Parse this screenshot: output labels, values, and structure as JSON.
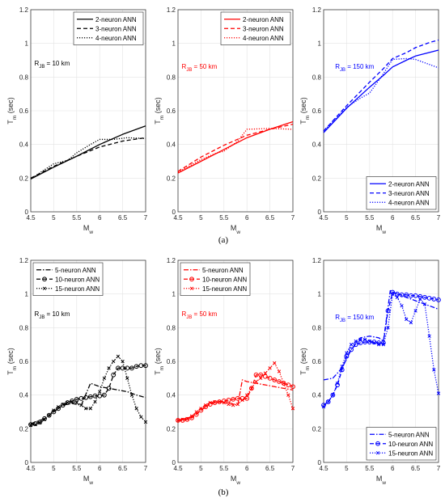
{
  "chart_data": [
    {
      "id": "a1",
      "type": "line",
      "group": "a",
      "color": "#000000",
      "xlabel": "M",
      "xlabel_sub": "w",
      "ylabel": "T",
      "ylabel_sub": "m",
      "ylabel_unit": " (sec)",
      "xlim": [
        4.5,
        7
      ],
      "ylim": [
        0,
        1.2
      ],
      "xticks": [
        "4.5",
        "5",
        "5.5",
        "6",
        "6.5",
        "7"
      ],
      "yticks": [
        "0",
        "0.2",
        "0.4",
        "0.6",
        "0.8",
        "1",
        "1.2"
      ],
      "annotation": {
        "main": "R",
        "sub": "JB",
        "rest": " = 10 km",
        "x": 4.58,
        "y": 0.87
      },
      "legend": "top-right",
      "series": [
        {
          "name": "2-neuron ANN",
          "dash": "solid",
          "x": [
            4.5,
            5,
            5.5,
            6,
            6.5,
            7
          ],
          "y": [
            0.195,
            0.265,
            0.33,
            0.4,
            0.46,
            0.51
          ]
        },
        {
          "name": "3-neuron ANN",
          "dash": "dashed",
          "x": [
            4.5,
            5,
            5.5,
            6,
            6.5,
            7
          ],
          "y": [
            0.2,
            0.27,
            0.33,
            0.385,
            0.42,
            0.44
          ]
        },
        {
          "name": "4-neuron ANN",
          "dash": "dotted",
          "x": [
            4.5,
            4.8,
            5,
            5.3,
            5.5,
            5.8,
            6,
            6.3,
            6.6,
            7
          ],
          "y": [
            0.195,
            0.25,
            0.285,
            0.305,
            0.35,
            0.4,
            0.43,
            0.43,
            0.44,
            0.435
          ]
        }
      ]
    },
    {
      "id": "a2",
      "type": "line",
      "group": "a",
      "color": "#ff0000",
      "xlabel": "M",
      "xlabel_sub": "w",
      "ylabel": "T",
      "ylabel_sub": "m",
      "ylabel_unit": " (sec)",
      "xlim": [
        4.5,
        7
      ],
      "ylim": [
        0,
        1.2
      ],
      "xticks": [
        "4.5",
        "5",
        "5.5",
        "6",
        "6.5",
        "7"
      ],
      "yticks": [
        "0",
        "0.2",
        "0.4",
        "0.6",
        "0.8",
        "1",
        "1.2"
      ],
      "annotation": {
        "main": "R",
        "sub": "JB",
        "rest": " = 50 km",
        "x": 4.58,
        "y": 0.85
      },
      "legend": "top-right",
      "series": [
        {
          "name": "2-neuron ANN",
          "dash": "solid",
          "x": [
            4.5,
            5,
            5.5,
            6,
            6.5,
            7
          ],
          "y": [
            0.23,
            0.3,
            0.37,
            0.44,
            0.49,
            0.535
          ]
        },
        {
          "name": "3-neuron ANN",
          "dash": "dashed",
          "x": [
            4.5,
            5,
            5.5,
            6,
            6.5,
            7
          ],
          "y": [
            0.24,
            0.325,
            0.395,
            0.455,
            0.49,
            0.52
          ]
        },
        {
          "name": "4-neuron ANN",
          "dash": "dotted",
          "x": [
            4.5,
            4.8,
            5,
            5.3,
            5.5,
            5.8,
            6,
            6.5,
            7
          ],
          "y": [
            0.235,
            0.28,
            0.31,
            0.345,
            0.36,
            0.42,
            0.49,
            0.495,
            0.49
          ]
        }
      ]
    },
    {
      "id": "a3",
      "type": "line",
      "group": "a",
      "color": "#0000ff",
      "xlabel": "M",
      "xlabel_sub": "w",
      "ylabel": "T",
      "ylabel_sub": "m",
      "ylabel_unit": " (sec)",
      "xlim": [
        4.5,
        7
      ],
      "ylim": [
        0,
        1.2
      ],
      "xticks": [
        "4.5",
        "5",
        "5.5",
        "6",
        "6.5",
        "7"
      ],
      "yticks": [
        "0",
        "0.2",
        "0.4",
        "0.6",
        "0.8",
        "1",
        "1.2"
      ],
      "annotation": {
        "main": "R",
        "sub": "JB",
        "rest": " = 150 km",
        "x": 4.75,
        "y": 0.85
      },
      "legend": "bottom-right",
      "series": [
        {
          "name": "2-neuron ANN",
          "dash": "solid",
          "x": [
            4.5,
            5,
            5.5,
            5.8,
            6,
            6.3,
            6.5,
            7
          ],
          "y": [
            0.47,
            0.615,
            0.74,
            0.81,
            0.86,
            0.9,
            0.925,
            0.96
          ]
        },
        {
          "name": "3-neuron ANN",
          "dash": "dashed",
          "x": [
            4.5,
            5,
            5.5,
            5.8,
            6,
            6.3,
            6.5,
            6.8,
            7
          ],
          "y": [
            0.48,
            0.63,
            0.77,
            0.85,
            0.91,
            0.945,
            0.975,
            1.005,
            1.02
          ]
        },
        {
          "name": "4-neuron ANN",
          "dash": "dotted",
          "x": [
            4.5,
            5,
            5.3,
            5.5,
            5.8,
            6,
            6.3,
            6.5,
            6.8,
            7
          ],
          "y": [
            0.48,
            0.62,
            0.675,
            0.705,
            0.82,
            0.905,
            0.91,
            0.905,
            0.875,
            0.855
          ]
        }
      ]
    },
    {
      "id": "b1",
      "type": "line",
      "group": "b",
      "color": "#000000",
      "xlabel": "M",
      "xlabel_sub": "w",
      "ylabel": "T",
      "ylabel_sub": "m",
      "ylabel_unit": " (sec)",
      "xlim": [
        4.5,
        7
      ],
      "ylim": [
        0,
        1.2
      ],
      "xticks": [
        "4.5",
        "5",
        "5.5",
        "6",
        "6.5",
        "7"
      ],
      "yticks": [
        "0",
        "0.2",
        "0.4",
        "0.6",
        "0.8",
        "1",
        "1.2"
      ],
      "annotation": {
        "main": "R",
        "sub": "JB",
        "rest": " = 10 km",
        "x": 4.58,
        "y": 0.87
      },
      "legend": "top-left",
      "series": [
        {
          "name": "5-neuron ANN",
          "dash": "dashdot",
          "marker": "none",
          "x": [
            4.5,
            4.8,
            5,
            5.2,
            5.4,
            5.6,
            5.8,
            6,
            6.2,
            6.4,
            6.6,
            6.8,
            7
          ],
          "y": [
            0.23,
            0.26,
            0.3,
            0.34,
            0.35,
            0.34,
            0.47,
            0.45,
            0.44,
            0.43,
            0.42,
            0.4,
            0.385
          ]
        },
        {
          "name": "10-neuron ANN",
          "dash": "dashed",
          "marker": "circle",
          "x": [
            4.5,
            4.6,
            4.7,
            4.8,
            4.9,
            5,
            5.1,
            5.2,
            5.3,
            5.4,
            5.5,
            5.6,
            5.7,
            5.8,
            5.9,
            6,
            6.1,
            6.2,
            6.3,
            6.4,
            6.5,
            6.6,
            6.7,
            6.8,
            6.9,
            7
          ],
          "y": [
            0.225,
            0.23,
            0.24,
            0.26,
            0.28,
            0.3,
            0.32,
            0.34,
            0.355,
            0.365,
            0.375,
            0.38,
            0.385,
            0.39,
            0.395,
            0.395,
            0.4,
            0.44,
            0.52,
            0.56,
            0.56,
            0.56,
            0.56,
            0.57,
            0.575,
            0.575
          ]
        },
        {
          "name": "15-neuron ANN",
          "dash": "dotted",
          "marker": "x",
          "x": [
            4.5,
            4.6,
            4.7,
            4.8,
            4.9,
            5,
            5.1,
            5.2,
            5.3,
            5.4,
            5.5,
            5.6,
            5.7,
            5.8,
            5.9,
            6,
            6.1,
            6.2,
            6.3,
            6.4,
            6.5,
            6.6,
            6.7,
            6.8,
            6.9,
            7
          ],
          "y": [
            0.22,
            0.225,
            0.235,
            0.255,
            0.28,
            0.31,
            0.33,
            0.345,
            0.355,
            0.36,
            0.355,
            0.34,
            0.32,
            0.32,
            0.36,
            0.42,
            0.5,
            0.56,
            0.6,
            0.63,
            0.6,
            0.5,
            0.4,
            0.32,
            0.27,
            0.24
          ]
        }
      ]
    },
    {
      "id": "b2",
      "type": "line",
      "group": "b",
      "color": "#ff0000",
      "xlabel": "M",
      "xlabel_sub": "w",
      "ylabel": "T",
      "ylabel_sub": "m",
      "ylabel_unit": " (sec)",
      "xlim": [
        4.5,
        7
      ],
      "ylim": [
        0,
        1.2
      ],
      "xticks": [
        "4.5",
        "5",
        "5.5",
        "6",
        "6.5",
        "7"
      ],
      "yticks": [
        "0",
        "0.2",
        "0.4",
        "0.6",
        "0.8",
        "1",
        "1.2"
      ],
      "annotation": {
        "main": "R",
        "sub": "JB",
        "rest": " = 50 km",
        "x": 4.58,
        "y": 0.87
      },
      "legend": "top-left",
      "series": [
        {
          "name": "5-neuron ANN",
          "dash": "dashdot",
          "marker": "none",
          "x": [
            4.5,
            4.8,
            5,
            5.2,
            5.4,
            5.6,
            5.8,
            5.9,
            6,
            6.2,
            6.4,
            6.6,
            6.8,
            7
          ],
          "y": [
            0.25,
            0.27,
            0.31,
            0.35,
            0.36,
            0.355,
            0.34,
            0.49,
            0.48,
            0.47,
            0.46,
            0.45,
            0.44,
            0.43
          ]
        },
        {
          "name": "10-neuron ANN",
          "dash": "dashed",
          "marker": "circle",
          "x": [
            4.5,
            4.6,
            4.7,
            4.8,
            4.9,
            5,
            5.1,
            5.2,
            5.3,
            5.4,
            5.5,
            5.6,
            5.7,
            5.8,
            5.9,
            6,
            6.1,
            6.2,
            6.3,
            6.4,
            6.5,
            6.6,
            6.7,
            6.8,
            6.9,
            7
          ],
          "y": [
            0.25,
            0.25,
            0.255,
            0.265,
            0.285,
            0.31,
            0.33,
            0.345,
            0.355,
            0.36,
            0.365,
            0.37,
            0.375,
            0.38,
            0.38,
            0.38,
            0.44,
            0.52,
            0.52,
            0.51,
            0.5,
            0.49,
            0.48,
            0.47,
            0.46,
            0.45
          ]
        },
        {
          "name": "15-neuron ANN",
          "dash": "dotted",
          "marker": "x",
          "x": [
            4.5,
            4.6,
            4.7,
            4.8,
            4.9,
            5,
            5.1,
            5.2,
            5.3,
            5.4,
            5.5,
            5.6,
            5.7,
            5.8,
            5.9,
            6,
            6.1,
            6.2,
            6.3,
            6.4,
            6.5,
            6.6,
            6.7,
            6.8,
            6.9,
            7
          ],
          "y": [
            0.25,
            0.255,
            0.26,
            0.275,
            0.3,
            0.32,
            0.34,
            0.355,
            0.36,
            0.36,
            0.355,
            0.345,
            0.34,
            0.345,
            0.37,
            0.4,
            0.44,
            0.48,
            0.5,
            0.53,
            0.56,
            0.59,
            0.54,
            0.47,
            0.4,
            0.32
          ]
        }
      ]
    },
    {
      "id": "b3",
      "type": "line",
      "group": "b",
      "color": "#0000ff",
      "xlabel": "M",
      "xlabel_sub": "w",
      "ylabel": "T",
      "ylabel_sub": "m",
      "ylabel_unit": " (sec)",
      "xlim": [
        4.5,
        7
      ],
      "ylim": [
        0,
        1.2
      ],
      "xticks": [
        "4.5",
        "5",
        "5.5",
        "6",
        "6.5",
        "7"
      ],
      "yticks": [
        "0",
        "0.2",
        "0.4",
        "0.6",
        "0.8",
        "1",
        "1.2"
      ],
      "annotation": {
        "main": "R",
        "sub": "JB",
        "rest": " = 150 km",
        "x": 4.75,
        "y": 0.85
      },
      "legend": "bottom-right",
      "series": [
        {
          "name": "5-neuron ANN",
          "dash": "dashdot",
          "marker": "none",
          "x": [
            4.5,
            4.7,
            4.9,
            5.1,
            5.3,
            5.5,
            5.7,
            5.8,
            5.95,
            6.1,
            6.3,
            6.5,
            6.7,
            7
          ],
          "y": [
            0.49,
            0.5,
            0.56,
            0.67,
            0.74,
            0.75,
            0.74,
            0.72,
            1.02,
            1.0,
            0.98,
            0.96,
            0.94,
            0.91
          ]
        },
        {
          "name": "10-neuron ANN",
          "dash": "dashed",
          "marker": "circle",
          "x": [
            4.5,
            4.6,
            4.7,
            4.8,
            4.9,
            5,
            5.1,
            5.2,
            5.3,
            5.4,
            5.5,
            5.6,
            5.7,
            5.8,
            5.9,
            6,
            6.1,
            6.2,
            6.3,
            6.4,
            6.5,
            6.6,
            6.7,
            6.8,
            6.9,
            7
          ],
          "y": [
            0.34,
            0.36,
            0.4,
            0.46,
            0.55,
            0.63,
            0.67,
            0.7,
            0.71,
            0.715,
            0.715,
            0.715,
            0.71,
            0.71,
            0.9,
            1.01,
            1.0,
            0.995,
            0.995,
            0.99,
            0.99,
            0.985,
            0.98,
            0.975,
            0.97,
            0.965
          ]
        },
        {
          "name": "15-neuron ANN",
          "dash": "dotted",
          "marker": "x",
          "x": [
            4.5,
            4.6,
            4.7,
            4.8,
            4.9,
            5,
            5.1,
            5.2,
            5.3,
            5.4,
            5.5,
            5.6,
            5.7,
            5.8,
            5.9,
            6,
            6.1,
            6.2,
            6.3,
            6.4,
            6.5,
            6.6,
            6.7,
            6.8,
            6.9,
            7
          ],
          "y": [
            0.33,
            0.36,
            0.4,
            0.47,
            0.57,
            0.65,
            0.7,
            0.72,
            0.73,
            0.73,
            0.72,
            0.71,
            0.7,
            0.7,
            0.8,
            1.0,
            0.98,
            0.93,
            0.85,
            0.83,
            0.9,
            0.97,
            0.94,
            0.75,
            0.55,
            0.41
          ]
        }
      ]
    }
  ],
  "captions": {
    "a": "(a)",
    "b": "(b)"
  }
}
